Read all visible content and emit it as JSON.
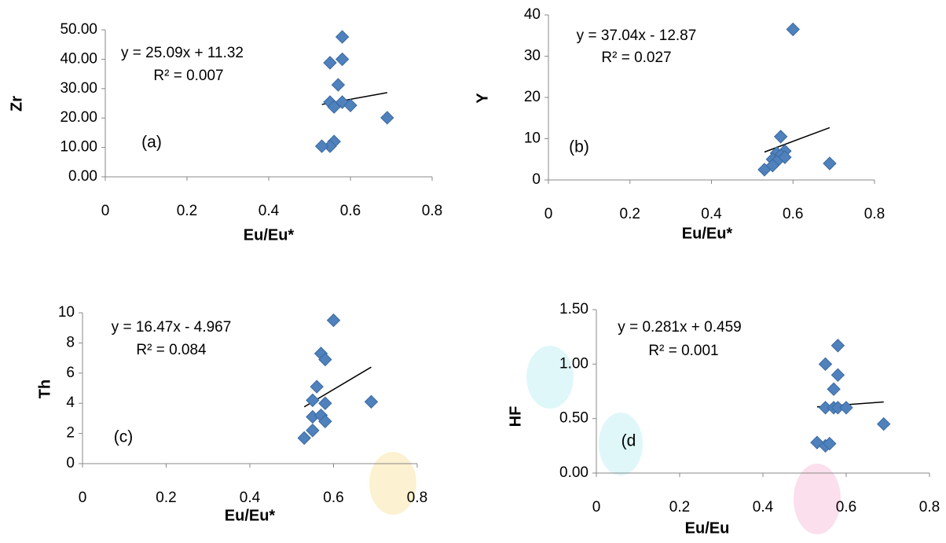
{
  "chart_data": [
    {
      "type": "scatter",
      "x_label": "Eu/Eu*",
      "y_label": "Zr",
      "equation": "y = 25.09x + 11.32",
      "r_squared": "R² = 0.007",
      "panel_label": "(a)",
      "trendline": {
        "slope": 25.09,
        "intercept": 11.32
      },
      "color": "#4f81bd",
      "x": [
        0.58,
        0.55,
        0.58,
        0.57,
        0.55,
        0.58,
        0.6,
        0.56,
        0.69,
        0.56,
        0.55,
        0.53
      ],
      "values": [
        47.6,
        38.8,
        40.0,
        31.3,
        25.4,
        25.4,
        24.3,
        23.8,
        20.1,
        12.0,
        10.4,
        10.4
      ],
      "xlim": [
        0,
        0.8
      ],
      "xticks": [
        0,
        0.2,
        0.4,
        0.6,
        0.8
      ],
      "ylim": [
        0,
        50
      ],
      "yticks": [
        {
          "value": 0,
          "label": "0.00"
        },
        {
          "value": 10,
          "label": "10.00"
        },
        {
          "value": 20,
          "label": "20.00"
        },
        {
          "value": 30,
          "label": "30.00"
        },
        {
          "value": 40,
          "label": "40.00"
        },
        {
          "value": 50,
          "label": "50.00"
        }
      ]
    },
    {
      "type": "scatter",
      "x_label": "Eu/Eu*",
      "y_label": "Y",
      "equation": "y = 37.04x - 12.87",
      "r_squared": "R² = 0.027",
      "panel_label": "(b)",
      "trendline": {
        "slope": 37.04,
        "intercept": -12.87
      },
      "color": "#4f81bd",
      "x": [
        0.6,
        0.57,
        0.58,
        0.56,
        0.57,
        0.58,
        0.55,
        0.69,
        0.56,
        0.53,
        0.55
      ],
      "values": [
        36.5,
        10.5,
        7.0,
        6.5,
        6.0,
        5.5,
        5.0,
        4.0,
        4.5,
        2.5,
        3.5
      ],
      "xlim": [
        0,
        0.8
      ],
      "xticks": [
        0,
        0.2,
        0.4,
        0.6,
        0.8
      ],
      "ylim": [
        0,
        40
      ],
      "yticks": [
        0,
        10,
        20,
        30,
        40
      ]
    },
    {
      "type": "scatter",
      "x_label": "Eu/Eu*",
      "y_label": "Th",
      "equation": "y = 16.47x - 4.967",
      "r_squared": "R² = 0.084",
      "panel_label": "(c)",
      "trendline": {
        "slope": 16.47,
        "intercept": -4.967
      },
      "color": "#4f81bd",
      "x": [
        0.6,
        0.57,
        0.58,
        0.56,
        0.58,
        0.55,
        0.69,
        0.55,
        0.57,
        0.58,
        0.55,
        0.53
      ],
      "values": [
        9.5,
        7.3,
        6.9,
        5.1,
        4.0,
        4.2,
        4.1,
        3.1,
        3.2,
        2.8,
        2.2,
        1.7
      ],
      "xlim": [
        0,
        0.8
      ],
      "xticks": [
        0,
        0.2,
        0.4,
        0.6,
        0.8
      ],
      "ylim": [
        0,
        10
      ],
      "yticks": [
        0,
        2,
        4,
        6,
        8,
        10
      ]
    },
    {
      "type": "scatter",
      "x_label": "Eu/Eu",
      "y_label": "HF",
      "equation": "y = 0.281x + 0.459",
      "r_squared": "R² = 0.001",
      "panel_label": "(d",
      "trendline": {
        "slope": 0.281,
        "intercept": 0.459
      },
      "color": "#4f81bd",
      "x": [
        0.58,
        0.55,
        0.58,
        0.57,
        0.55,
        0.57,
        0.58,
        0.6,
        0.69,
        0.53,
        0.55,
        0.56
      ],
      "values": [
        1.17,
        1.0,
        0.9,
        0.77,
        0.6,
        0.6,
        0.6,
        0.6,
        0.45,
        0.28,
        0.25,
        0.27
      ],
      "xlim": [
        0,
        0.8
      ],
      "xticks": [
        0,
        0.2,
        0.4,
        0.6,
        0.8
      ],
      "ylim": [
        0,
        1.5
      ],
      "yticks": [
        {
          "value": 0,
          "label": "0.00"
        },
        {
          "value": 0.5,
          "label": "0.50"
        },
        {
          "value": 1,
          "label": "1.00"
        },
        {
          "value": 1.5,
          "label": "1.50"
        }
      ]
    }
  ]
}
